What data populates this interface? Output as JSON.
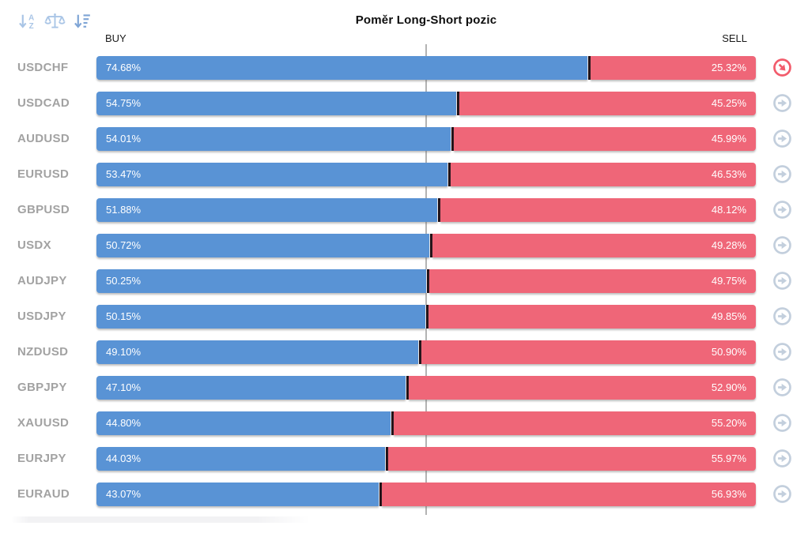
{
  "header": {
    "title": "Poměr Long-Short pozic",
    "buy_label": "BUY",
    "sell_label": "SELL",
    "toolbar": [
      {
        "name": "sort-alphabetical-icon"
      },
      {
        "name": "balance-scale-icon"
      },
      {
        "name": "sort-amount-desc-icon",
        "active": true
      }
    ]
  },
  "colors": {
    "buy": "#5993d5",
    "sell": "#ef6678",
    "divider": "#200f15",
    "midline": "#b3b3b3",
    "pair_label": "#a2a2a2",
    "action_default": "#c3cfdd",
    "action_alert": "#f25c6c",
    "toolbar_icon": "#a9c5e6",
    "toolbar_icon_active": "#7fa5d6",
    "text": "#0d0d0d"
  },
  "rows": [
    {
      "pair": "USDCHF",
      "buy": "74.68%",
      "sell": "25.32%",
      "buy_value": 74.68,
      "sell_value": 25.32,
      "action_icon": "arrow-down-right-circle-icon",
      "action_state": "alert"
    },
    {
      "pair": "USDCAD",
      "buy": "54.75%",
      "sell": "45.25%",
      "buy_value": 54.75,
      "sell_value": 45.25,
      "action_icon": "arrow-right-circle-icon",
      "action_state": "default"
    },
    {
      "pair": "AUDUSD",
      "buy": "54.01%",
      "sell": "45.99%",
      "buy_value": 54.01,
      "sell_value": 45.99,
      "action_icon": "arrow-right-circle-icon",
      "action_state": "default"
    },
    {
      "pair": "EURUSD",
      "buy": "53.47%",
      "sell": "46.53%",
      "buy_value": 53.47,
      "sell_value": 46.53,
      "action_icon": "arrow-right-circle-icon",
      "action_state": "default"
    },
    {
      "pair": "GBPUSD",
      "buy": "51.88%",
      "sell": "48.12%",
      "buy_value": 51.88,
      "sell_value": 48.12,
      "action_icon": "arrow-right-circle-icon",
      "action_state": "default"
    },
    {
      "pair": "USDX",
      "buy": "50.72%",
      "sell": "49.28%",
      "buy_value": 50.72,
      "sell_value": 49.28,
      "action_icon": "arrow-right-circle-icon",
      "action_state": "default"
    },
    {
      "pair": "AUDJPY",
      "buy": "50.25%",
      "sell": "49.75%",
      "buy_value": 50.25,
      "sell_value": 49.75,
      "action_icon": "arrow-right-circle-icon",
      "action_state": "default"
    },
    {
      "pair": "USDJPY",
      "buy": "50.15%",
      "sell": "49.85%",
      "buy_value": 50.15,
      "sell_value": 49.85,
      "action_icon": "arrow-right-circle-icon",
      "action_state": "default"
    },
    {
      "pair": "NZDUSD",
      "buy": "49.10%",
      "sell": "50.90%",
      "buy_value": 49.1,
      "sell_value": 50.9,
      "action_icon": "arrow-right-circle-icon",
      "action_state": "default"
    },
    {
      "pair": "GBPJPY",
      "buy": "47.10%",
      "sell": "52.90%",
      "buy_value": 47.1,
      "sell_value": 52.9,
      "action_icon": "arrow-right-circle-icon",
      "action_state": "default"
    },
    {
      "pair": "XAUUSD",
      "buy": "44.80%",
      "sell": "55.20%",
      "buy_value": 44.8,
      "sell_value": 55.2,
      "action_icon": "arrow-right-circle-icon",
      "action_state": "default"
    },
    {
      "pair": "EURJPY",
      "buy": "44.03%",
      "sell": "55.97%",
      "buy_value": 44.03,
      "sell_value": 55.97,
      "action_icon": "arrow-right-circle-icon",
      "action_state": "default"
    },
    {
      "pair": "EURAUD",
      "buy": "43.07%",
      "sell": "56.93%",
      "buy_value": 43.07,
      "sell_value": 56.93,
      "action_icon": "arrow-right-circle-icon",
      "action_state": "default"
    }
  ],
  "chart_data": {
    "type": "bar",
    "subtype": "horizontal-stacked",
    "title": "Poměr Long-Short pozic",
    "categories": [
      "USDCHF",
      "USDCAD",
      "AUDUSD",
      "EURUSD",
      "GBPUSD",
      "USDX",
      "AUDJPY",
      "USDJPY",
      "NZDUSD",
      "GBPJPY",
      "XAUUSD",
      "EURJPY",
      "EURAUD"
    ],
    "series": [
      {
        "name": "BUY",
        "color": "#5993d5",
        "values": [
          74.68,
          54.75,
          54.01,
          53.47,
          51.88,
          50.72,
          50.25,
          50.15,
          49.1,
          47.1,
          44.8,
          44.03,
          43.07
        ]
      },
      {
        "name": "SELL",
        "color": "#ef6678",
        "values": [
          25.32,
          45.25,
          45.99,
          46.53,
          48.12,
          49.28,
          49.75,
          49.85,
          50.9,
          52.9,
          55.2,
          55.97,
          56.93
        ]
      }
    ],
    "value_unit": "%",
    "xlim": [
      0,
      100
    ],
    "midline_x": 50,
    "legend_position": "top: BUY left, SELL right",
    "grid": false,
    "sort_order": "BUY descending"
  }
}
